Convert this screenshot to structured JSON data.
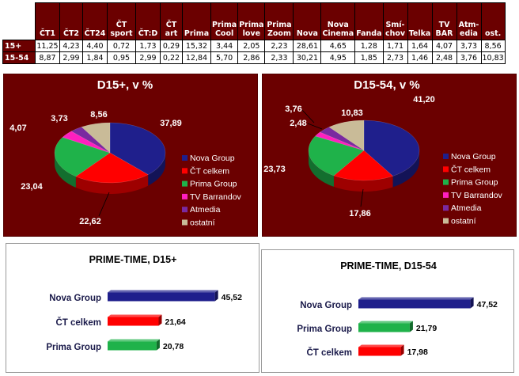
{
  "table": {
    "columns": [
      "ČT1",
      "ČT2",
      "ČT24",
      "ČT sport",
      "ČT:D",
      "ČT art",
      "Prima",
      "Prima Cool",
      "Prima love",
      "Prima Zoom",
      "Nova",
      "Nova Cinema",
      "Fanda",
      "Smí-chov",
      "Telka",
      "TV BAR",
      "Atm-edia",
      "ost."
    ],
    "header_lines": [
      [
        "ČT1"
      ],
      [
        "ČT2"
      ],
      [
        "ČT24"
      ],
      [
        "ČT",
        "sport"
      ],
      [
        "ČT:D"
      ],
      [
        "ČT",
        "art"
      ],
      [
        "Prima"
      ],
      [
        "Prima",
        "Cool"
      ],
      [
        "Prima",
        "love"
      ],
      [
        "Prima",
        "Zoom"
      ],
      [
        "Nova"
      ],
      [
        "Nova",
        "Cinema"
      ],
      [
        "Fanda"
      ],
      [
        "Smí-",
        "chov"
      ],
      [
        "Telka"
      ],
      [
        "TV",
        "BAR"
      ],
      [
        "Atm-",
        "edia"
      ],
      [
        "ost."
      ]
    ],
    "rows": [
      {
        "label": "15+",
        "values": [
          "11,25",
          "4,23",
          "4,40",
          "0,72",
          "1,73",
          "0,29",
          "15,32",
          "3,44",
          "2,05",
          "2,23",
          "28,61",
          "4,65",
          "1,28",
          "1,71",
          "1,64",
          "4,07",
          "3,73",
          "8,56"
        ]
      },
      {
        "label": "15-54",
        "values": [
          "8,87",
          "2,99",
          "1,84",
          "0,95",
          "2,99",
          "0,22",
          "12,84",
          "5,70",
          "2,86",
          "2,33",
          "30,21",
          "4,95",
          "1,85",
          "2,73",
          "1,46",
          "2,48",
          "3,76",
          "10,83"
        ]
      }
    ]
  },
  "colors": {
    "panel_bg": "#6b0000",
    "nova": "#1f1f8c",
    "ct": "#ff0000",
    "prima": "#1fb24a",
    "tvb": "#ff1fbf",
    "atmedia": "#7a2aa0",
    "ostatni": "#c9bb98"
  },
  "chart_data": [
    {
      "type": "pie",
      "title": "D15+, v %",
      "legend_position": "right",
      "categories": [
        "Nova Group",
        "ČT celkem",
        "Prima Group",
        "TV Barrandov",
        "Atmedia",
        "ostatní"
      ],
      "values": [
        37.89,
        22.62,
        23.04,
        4.07,
        3.73,
        8.56
      ],
      "labels": [
        "37,89",
        "22,62",
        "23,04",
        "4,07",
        "3,73",
        "8,56"
      ]
    },
    {
      "type": "pie",
      "title": "D15-54, v %",
      "legend_position": "right",
      "categories": [
        "Nova Group",
        "ČT celkem",
        "Prima Group",
        "TV Barrandov",
        "Atmedia",
        "ostatní"
      ],
      "values": [
        41.2,
        17.86,
        23.73,
        2.48,
        3.76,
        10.83
      ],
      "labels": [
        "41,20",
        "17,86",
        "23,73",
        "2,48",
        "3,76",
        "10,83"
      ]
    },
    {
      "type": "bar",
      "orientation": "horizontal",
      "title": "PRIME-TIME, D15+",
      "categories": [
        "Nova Group",
        "ČT celkem",
        "Prima Group"
      ],
      "values": [
        45.52,
        21.64,
        20.78
      ],
      "labels": [
        "45,52",
        "21,64",
        "20,78"
      ],
      "bar_colors": [
        "#1f1f8c",
        "#ff0000",
        "#1fb24a"
      ]
    },
    {
      "type": "bar",
      "orientation": "horizontal",
      "title": "PRIME-TIME, D15-54",
      "categories": [
        "Nova Group",
        "Prima Group",
        "ČT celkem"
      ],
      "values": [
        47.52,
        21.79,
        17.98
      ],
      "labels": [
        "47,52",
        "21,79",
        "17,98"
      ],
      "bar_colors": [
        "#1f1f8c",
        "#1fb24a",
        "#ff0000"
      ]
    }
  ]
}
